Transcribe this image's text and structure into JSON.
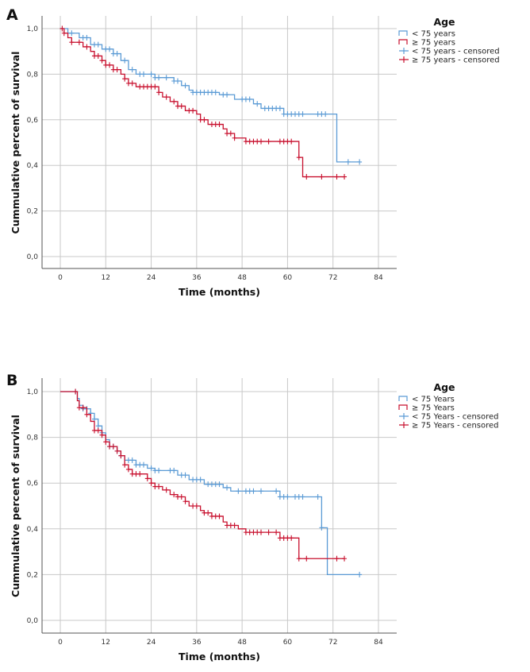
{
  "colors": {
    "under75": "#5b9bd5",
    "over75": "#c8102e",
    "grid": "#c8c8c8",
    "axis": "#555555"
  },
  "chart_data": [
    {
      "panel": "A",
      "type": "line",
      "subtype": "kaplan-meier",
      "xlabel": "Time (months)",
      "ylabel": "Cummulative percent of survival",
      "xlim": [
        0,
        84
      ],
      "ylim": [
        0,
        1
      ],
      "xticks": [
        "0",
        "12",
        "24",
        "36",
        "48",
        "60",
        "72",
        "84"
      ],
      "yticks": [
        "0,0",
        "0,2",
        "0,4",
        "0,6",
        "0,8",
        "1,0"
      ],
      "grid": true,
      "legend_placement": "top-right",
      "legend": {
        "title": "Age",
        "items": [
          "< 75 years",
          "≥ 75 years",
          "< 75 years - censored",
          "≥ 75 years - censored"
        ]
      },
      "series": [
        {
          "name": "< 75 years",
          "color": "under75",
          "end": 79,
          "steps": [
            [
              0,
              1.0
            ],
            [
              2,
              0.98
            ],
            [
              5,
              0.96
            ],
            [
              8,
              0.93
            ],
            [
              11,
              0.91
            ],
            [
              14,
              0.89
            ],
            [
              16,
              0.86
            ],
            [
              18,
              0.82
            ],
            [
              20,
              0.8
            ],
            [
              25,
              0.785
            ],
            [
              30,
              0.77
            ],
            [
              32,
              0.75
            ],
            [
              34,
              0.73
            ],
            [
              35,
              0.72
            ],
            [
              42,
              0.71
            ],
            [
              46,
              0.69
            ],
            [
              51,
              0.67
            ],
            [
              53,
              0.65
            ],
            [
              59,
              0.625
            ],
            [
              73,
              0.415
            ]
          ],
          "censored": [
            3,
            6,
            7,
            9,
            10,
            12,
            13,
            14,
            15,
            17,
            19,
            21,
            22,
            24,
            25,
            26,
            28,
            30,
            31,
            33,
            35,
            36,
            37,
            38,
            39,
            40,
            41,
            43,
            44,
            48,
            49,
            50,
            52,
            54,
            55,
            56,
            57,
            58,
            59,
            60,
            61,
            62,
            63,
            64,
            68,
            69,
            70,
            76,
            79
          ]
        },
        {
          "name": "≥ 75 years",
          "color": "over75",
          "end": 75,
          "steps": [
            [
              0,
              1.0
            ],
            [
              1,
              0.98
            ],
            [
              2,
              0.96
            ],
            [
              3,
              0.94
            ],
            [
              6,
              0.92
            ],
            [
              8,
              0.9
            ],
            [
              9,
              0.88
            ],
            [
              11,
              0.86
            ],
            [
              12,
              0.84
            ],
            [
              14,
              0.82
            ],
            [
              16,
              0.8
            ],
            [
              17,
              0.78
            ],
            [
              18,
              0.76
            ],
            [
              20,
              0.745
            ],
            [
              26,
              0.72
            ],
            [
              27,
              0.7
            ],
            [
              29,
              0.68
            ],
            [
              31,
              0.66
            ],
            [
              33,
              0.64
            ],
            [
              36,
              0.625
            ],
            [
              37,
              0.6
            ],
            [
              39,
              0.58
            ],
            [
              43,
              0.56
            ],
            [
              44,
              0.54
            ],
            [
              46,
              0.52
            ],
            [
              49,
              0.505
            ],
            [
              63,
              0.435
            ],
            [
              64,
              0.35
            ]
          ],
          "censored": [
            0.5,
            1,
            3,
            5,
            7,
            9,
            10,
            11,
            12,
            13,
            14,
            15,
            17,
            18,
            19,
            21,
            22,
            23,
            24,
            25,
            26,
            28,
            30,
            31,
            32,
            34,
            35,
            37,
            38,
            40,
            41,
            42,
            44,
            45,
            46,
            49,
            50,
            51,
            52,
            53,
            55,
            58,
            59,
            60,
            61,
            63,
            65,
            69,
            73,
            75
          ]
        }
      ]
    },
    {
      "panel": "B",
      "type": "line",
      "subtype": "kaplan-meier",
      "xlabel": "Time (months)",
      "ylabel": "Cummulative percent of survival",
      "xlim": [
        0,
        84
      ],
      "ylim": [
        0,
        1
      ],
      "xticks": [
        "0",
        "12",
        "24",
        "36",
        "48",
        "60",
        "72",
        "84"
      ],
      "yticks": [
        "0,0",
        "0,2",
        "0,4",
        "0,6",
        "0,8",
        "1,0"
      ],
      "grid": true,
      "legend_placement": "top-right",
      "legend": {
        "title": "Age",
        "items": [
          "< 75 Years",
          "≥ 75 Years",
          "< 75 Years - censored",
          "≥ 75 Years - censored"
        ]
      },
      "series": [
        {
          "name": "< 75 Years",
          "color": "under75",
          "end": 79,
          "steps": [
            [
              0,
              1.0
            ],
            [
              4.5,
              0.97
            ],
            [
              5,
              0.94
            ],
            [
              6,
              0.925
            ],
            [
              8,
              0.905
            ],
            [
              9,
              0.88
            ],
            [
              10,
              0.85
            ],
            [
              11,
              0.82
            ],
            [
              12,
              0.79
            ],
            [
              13,
              0.76
            ],
            [
              15,
              0.74
            ],
            [
              16,
              0.72
            ],
            [
              17,
              0.7
            ],
            [
              20,
              0.68
            ],
            [
              23,
              0.665
            ],
            [
              25,
              0.655
            ],
            [
              31,
              0.635
            ],
            [
              34,
              0.615
            ],
            [
              38,
              0.595
            ],
            [
              43,
              0.58
            ],
            [
              45,
              0.565
            ],
            [
              58,
              0.54
            ],
            [
              69,
              0.405
            ],
            [
              70.5,
              0.2
            ]
          ],
          "censored": [
            4,
            6,
            7,
            8,
            9,
            10,
            11,
            13,
            14,
            15,
            16,
            18,
            19,
            20,
            21,
            22,
            24,
            25,
            26,
            29,
            30,
            32,
            33,
            35,
            36,
            37,
            39,
            40,
            41,
            42,
            44,
            47,
            49,
            50,
            51,
            53,
            57,
            58,
            59,
            60,
            62,
            63,
            64,
            68,
            69,
            79
          ]
        },
        {
          "name": "≥ 75 Years",
          "color": "over75",
          "end": 75,
          "steps": [
            [
              0,
              1.0
            ],
            [
              4.5,
              0.96
            ],
            [
              5,
              0.93
            ],
            [
              7,
              0.9
            ],
            [
              8,
              0.87
            ],
            [
              9,
              0.83
            ],
            [
              11,
              0.81
            ],
            [
              12,
              0.78
            ],
            [
              13,
              0.76
            ],
            [
              15,
              0.74
            ],
            [
              16,
              0.72
            ],
            [
              17,
              0.68
            ],
            [
              18,
              0.66
            ],
            [
              19,
              0.64
            ],
            [
              23,
              0.62
            ],
            [
              24,
              0.6
            ],
            [
              25,
              0.585
            ],
            [
              27,
              0.57
            ],
            [
              29,
              0.55
            ],
            [
              31,
              0.54
            ],
            [
              33,
              0.52
            ],
            [
              34,
              0.5
            ],
            [
              37,
              0.48
            ],
            [
              38,
              0.47
            ],
            [
              40,
              0.455
            ],
            [
              43,
              0.43
            ],
            [
              44,
              0.415
            ],
            [
              47,
              0.4
            ],
            [
              49,
              0.385
            ],
            [
              58,
              0.36
            ],
            [
              63,
              0.27
            ]
          ],
          "censored": [
            4,
            5,
            6,
            7,
            9,
            10,
            11,
            12,
            13,
            14,
            15,
            16,
            17,
            18,
            19,
            20,
            21,
            23,
            24,
            25,
            26,
            28,
            30,
            31,
            32,
            33,
            35,
            36,
            38,
            39,
            40,
            41,
            42,
            44,
            45,
            46,
            49,
            50,
            51,
            52,
            53,
            55,
            57,
            58,
            59,
            60,
            61,
            63,
            65,
            73,
            75
          ]
        }
      ]
    }
  ]
}
